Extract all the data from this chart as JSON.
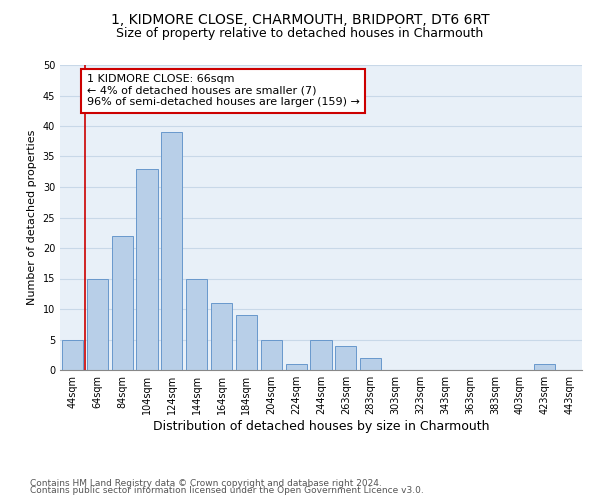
{
  "title": "1, KIDMORE CLOSE, CHARMOUTH, BRIDPORT, DT6 6RT",
  "subtitle": "Size of property relative to detached houses in Charmouth",
  "xlabel": "Distribution of detached houses by size in Charmouth",
  "ylabel": "Number of detached properties",
  "categories": [
    "44sqm",
    "64sqm",
    "84sqm",
    "104sqm",
    "124sqm",
    "144sqm",
    "164sqm",
    "184sqm",
    "204sqm",
    "224sqm",
    "244sqm",
    "263sqm",
    "283sqm",
    "303sqm",
    "323sqm",
    "343sqm",
    "363sqm",
    "383sqm",
    "403sqm",
    "423sqm",
    "443sqm"
  ],
  "values": [
    5,
    15,
    22,
    33,
    39,
    15,
    11,
    9,
    5,
    1,
    5,
    4,
    2,
    0,
    0,
    0,
    0,
    0,
    0,
    1,
    0
  ],
  "bar_color": "#b8cfe8",
  "bar_edge_color": "#6898cc",
  "subject_line_color": "#cc0000",
  "annotation_text": "1 KIDMORE CLOSE: 66sqm\n← 4% of detached houses are smaller (7)\n96% of semi-detached houses are larger (159) →",
  "annotation_box_color": "#cc0000",
  "ylim": [
    0,
    50
  ],
  "yticks": [
    0,
    5,
    10,
    15,
    20,
    25,
    30,
    35,
    40,
    45,
    50
  ],
  "grid_color": "#c8d8e8",
  "bg_color": "#e8f0f8",
  "footer1": "Contains HM Land Registry data © Crown copyright and database right 2024.",
  "footer2": "Contains public sector information licensed under the Open Government Licence v3.0.",
  "title_fontsize": 10,
  "subtitle_fontsize": 9,
  "ylabel_fontsize": 8,
  "xlabel_fontsize": 9,
  "tick_fontsize": 7,
  "annotation_fontsize": 8,
  "footer_fontsize": 6.5
}
